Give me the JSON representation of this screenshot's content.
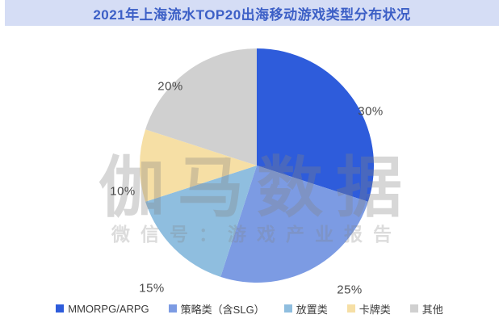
{
  "title": "2021年上海流水TOP20出海移动游戏类型分布状况",
  "watermark": {
    "main": "伽马数据",
    "sub": "微信号：游戏产业报告"
  },
  "colors": {
    "banner_bg": "#d5ddf5",
    "banner_text": "#3c5fc6",
    "percent_label_text": "#4a4a4a",
    "legend_text": "#3a3a3a"
  },
  "chart_data": {
    "type": "pie",
    "title": "2021年上海流水TOP20出海移动游戏类型分布状况",
    "start_angle_deg": 0,
    "direction": "clockwise",
    "legend_position": "bottom",
    "slices": [
      {
        "name": "MMORPG/ARPG",
        "value": 30,
        "label": "30%",
        "color": "#2e5cdb"
      },
      {
        "name": "策略类（含SLG）",
        "value": 25,
        "label": "25%",
        "color": "#7c9be3"
      },
      {
        "name": "放置类",
        "value": 15,
        "label": "15%",
        "color": "#8fbedf"
      },
      {
        "name": "卡牌类",
        "value": 10,
        "label": "10%",
        "color": "#f6dfa5"
      },
      {
        "name": "其他",
        "value": 20,
        "label": "20%",
        "color": "#d0d0d0"
      }
    ]
  }
}
